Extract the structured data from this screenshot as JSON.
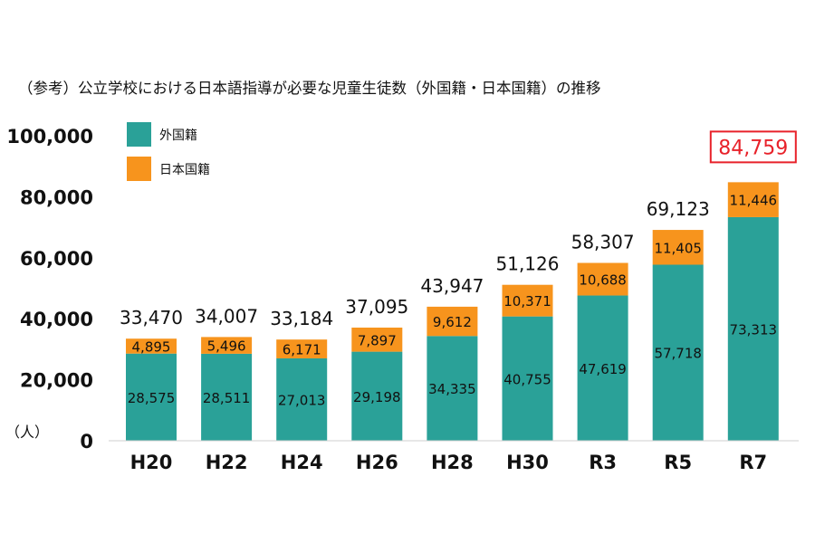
{
  "chart_data": {
    "type": "bar",
    "stacked": true,
    "title": "（参考）公立学校における日本語指導が必要な児童生徒数（外国籍・日本国籍）の推移",
    "unit_label": "（人）",
    "categories": [
      "H20",
      "H22",
      "H24",
      "H26",
      "H28",
      "H30",
      "R3",
      "R5",
      "R7"
    ],
    "series": [
      {
        "name": "外国籍",
        "color": "#2aa198",
        "values": [
          28575,
          28511,
          27013,
          29198,
          34335,
          40755,
          47619,
          57718,
          73313
        ]
      },
      {
        "name": "日本国籍",
        "color": "#f7941d",
        "values": [
          4895,
          5496,
          6171,
          7897,
          9612,
          10371,
          10688,
          11405,
          11446
        ]
      }
    ],
    "totals": [
      33470,
      34007,
      33184,
      37095,
      43947,
      51126,
      58307,
      69123,
      84759
    ],
    "series_labels": [
      [
        "28,575",
        "28,511",
        "27,013",
        "29,198",
        "34,335",
        "40,755",
        "47,619",
        "57,718",
        "73,313"
      ],
      [
        "4,895",
        "5,496",
        "6,171",
        "7,897",
        "9,612",
        "10,371",
        "10,688",
        "11,405",
        "11,446"
      ]
    ],
    "total_labels": [
      "33,470",
      "34,007",
      "33,184",
      "37,095",
      "43,947",
      "51,126",
      "58,307",
      "69,123",
      "84,759"
    ],
    "highlight_total_index": 8,
    "highlight_color": "#e8222a",
    "ylim": [
      0,
      100000
    ],
    "yticks": [
      0,
      20000,
      40000,
      60000,
      80000,
      100000
    ],
    "ytick_labels": [
      "0",
      "20,000",
      "40,000",
      "60,000",
      "80,000",
      "100,000"
    ],
    "legend_position": "top-left",
    "grid": false
  }
}
